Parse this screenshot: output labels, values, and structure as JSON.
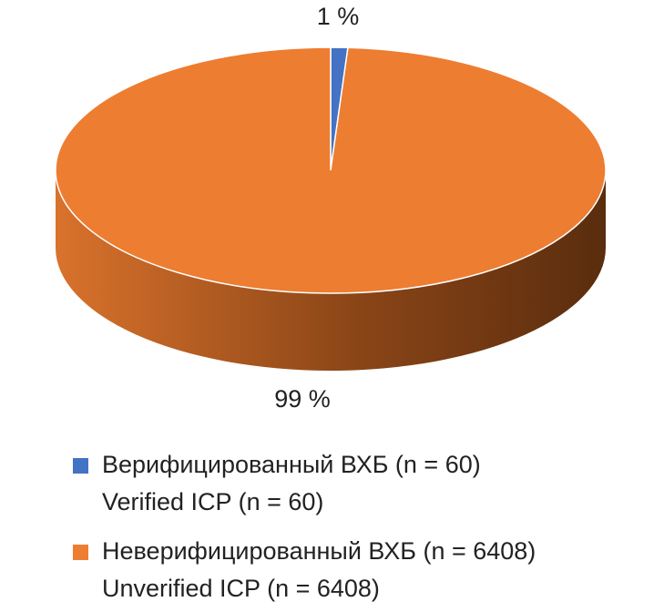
{
  "chart_data": {
    "type": "pie3d",
    "categories": [
      [
        "Верифицированный ВХБ (n = 60)",
        "Verified ICP (n = 60)"
      ],
      [
        "Неверифицированный ВХБ (n = 6408)",
        "Unverified ICP (n = 6408)"
      ]
    ],
    "values": [
      1,
      99
    ],
    "value_labels": [
      "1 %",
      "99 %"
    ],
    "colors": [
      "#4472c4",
      "#ed7d31"
    ]
  }
}
